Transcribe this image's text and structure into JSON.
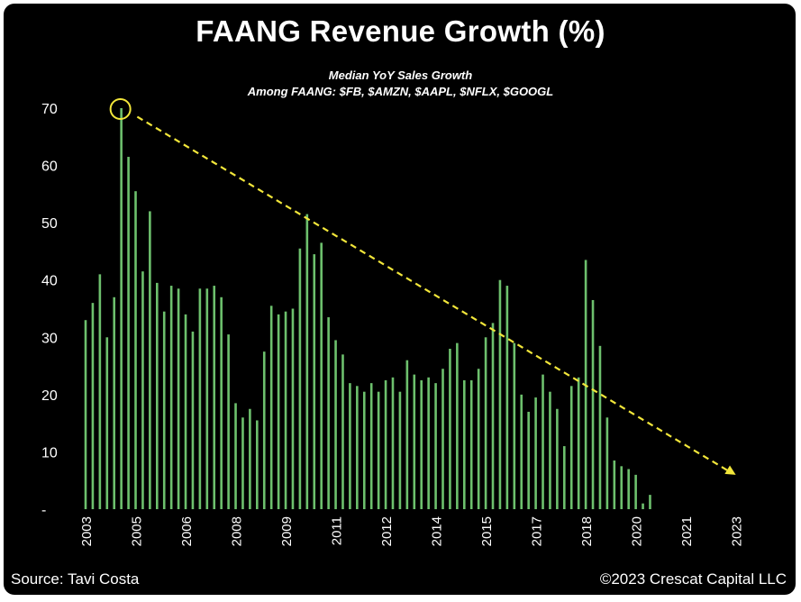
{
  "chart_data": {
    "type": "bar",
    "title": "FAANG Revenue Growth (%)",
    "subtitle_line1": "Median YoY Sales Growth",
    "subtitle_line2": "Among FAANG: $FB, $AMZN, $AAPL, $NFLX, $GOOGL",
    "ylim": [
      0,
      70
    ],
    "yticks": [
      {
        "value": 0,
        "label": "-"
      },
      {
        "value": 10,
        "label": "10"
      },
      {
        "value": 20,
        "label": "20"
      },
      {
        "value": 30,
        "label": "30"
      },
      {
        "value": 40,
        "label": "40"
      },
      {
        "value": 50,
        "label": "50"
      },
      {
        "value": 60,
        "label": "60"
      },
      {
        "value": 70,
        "label": "70"
      }
    ],
    "xtick_labels": [
      {
        "index": 0,
        "label": "2003"
      },
      {
        "index": 7,
        "label": "2005"
      },
      {
        "index": 14,
        "label": "2006"
      },
      {
        "index": 21,
        "label": "2008"
      },
      {
        "index": 28,
        "label": "2009"
      },
      {
        "index": 35,
        "label": "2011"
      },
      {
        "index": 42,
        "label": "2012"
      },
      {
        "index": 49,
        "label": "2014"
      },
      {
        "index": 56,
        "label": "2015"
      },
      {
        "index": 63,
        "label": "2017"
      },
      {
        "index": 70,
        "label": "2018"
      },
      {
        "index": 77,
        "label": "2020"
      },
      {
        "index": 84,
        "label": "2021"
      },
      {
        "index": 91,
        "label": "2023"
      }
    ],
    "values": [
      33,
      36,
      41,
      30,
      37,
      70,
      61.5,
      55.5,
      41.5,
      52,
      39.5,
      34.5,
      39,
      38.5,
      34,
      31,
      38.5,
      38.5,
      39,
      37,
      30.5,
      18.5,
      16,
      17.5,
      15.5,
      27.5,
      35.5,
      34,
      34.5,
      35,
      45.5,
      51.5,
      44.5,
      46.5,
      33.5,
      29.5,
      27,
      22,
      21.5,
      20.5,
      22,
      20.5,
      22.5,
      23,
      20.5,
      26,
      23.5,
      22.5,
      23,
      22,
      24.5,
      28,
      29,
      22.5,
      22.5,
      24.5,
      30,
      32.5,
      40,
      39,
      29,
      20,
      17,
      19.5,
      23.5,
      20.5,
      17.5,
      11,
      21.5,
      23,
      43.5,
      36.5,
      28.5,
      16,
      8.5,
      7.5,
      7,
      6,
      1,
      2.5
    ],
    "bar_color": "#6dc06d",
    "trend_line": {
      "from_index": 9,
      "from_value": 68.5,
      "to_index": 91,
      "to_value": 6
    },
    "trend_color": "#f2e63a",
    "highlight": {
      "index": 5,
      "value": 70,
      "color": "#f2e63a"
    },
    "grid": false,
    "legend": "none"
  },
  "footer": {
    "source": "Source: Tavi Costa",
    "copyright": "©2023 Crescat Capital LLC"
  }
}
